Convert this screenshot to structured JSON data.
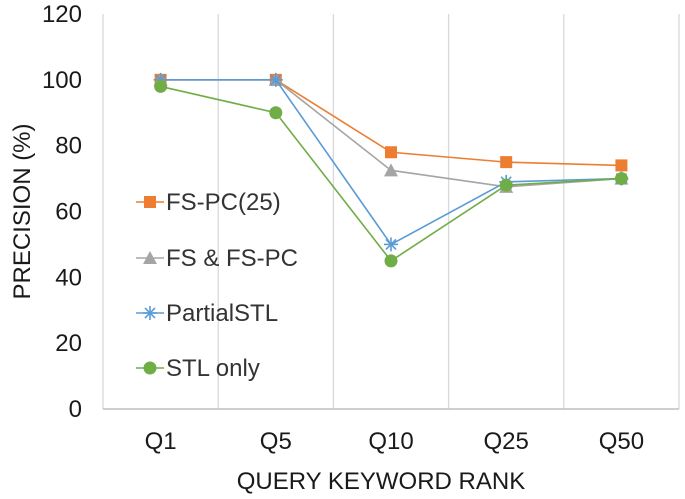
{
  "chart_data": {
    "type": "line",
    "xlabel": "QUERY KEYWORD RANK",
    "ylabel": "PRECISION (%)",
    "categories": [
      "Q1",
      "Q5",
      "Q10",
      "Q25",
      "Q50"
    ],
    "ylim": [
      0,
      120
    ],
    "yticks": [
      0,
      20,
      40,
      60,
      80,
      100,
      120
    ],
    "grid": "vertical",
    "legend": "left-inside",
    "series": [
      {
        "name": "FS-PC(25)",
        "values": [
          100,
          100,
          78,
          75,
          74
        ],
        "color": "#ed7d31",
        "marker": "square"
      },
      {
        "name": "FS & FS-PC",
        "values": [
          100,
          100,
          72.5,
          67.5,
          70
        ],
        "color": "#a5a5a5",
        "marker": "triangle"
      },
      {
        "name": "PartialSTL",
        "values": [
          100,
          100,
          50,
          69,
          70
        ],
        "color": "#5b9bd5",
        "marker": "asterisk"
      },
      {
        "name": "STL only",
        "values": [
          98,
          90,
          45,
          68,
          70
        ],
        "color": "#70ad47",
        "marker": "circle"
      }
    ]
  }
}
